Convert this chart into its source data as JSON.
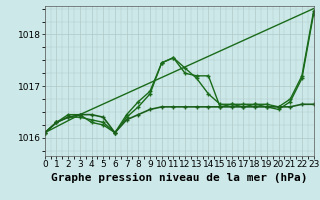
{
  "background_color": "#cce8e8",
  "grid_color": "#b0c8c8",
  "line_color": "#1a6b1a",
  "title": "Graphe pression niveau de la mer (hPa)",
  "xlim": [
    0,
    23
  ],
  "ylim": [
    1015.65,
    1018.55
  ],
  "yticks": [
    1016,
    1017,
    1018
  ],
  "xticks": [
    0,
    1,
    2,
    3,
    4,
    5,
    6,
    7,
    8,
    9,
    10,
    11,
    12,
    13,
    14,
    15,
    16,
    17,
    18,
    19,
    20,
    21,
    22,
    23
  ],
  "series": [
    {
      "x": [
        0,
        3,
        23
      ],
      "y": [
        1016.1,
        1016.45,
        1018.5
      ],
      "color": "#1a6b1a",
      "lw": 1.0,
      "marker": null
    },
    {
      "x": [
        0,
        1,
        2,
        3,
        4,
        5,
        6,
        7,
        8,
        9,
        10,
        11,
        12,
        13,
        14,
        15,
        16,
        17,
        18,
        19,
        20,
        21,
        22,
        23
      ],
      "y": [
        1016.1,
        1016.3,
        1016.45,
        1016.45,
        1016.3,
        1016.25,
        1016.1,
        1016.45,
        1016.7,
        1016.9,
        1017.45,
        1017.55,
        1017.25,
        1017.2,
        1017.2,
        1016.6,
        1016.65,
        1016.65,
        1016.65,
        1016.65,
        1016.6,
        1016.75,
        1017.2,
        1018.45
      ],
      "color": "#1a6b1a",
      "lw": 1.0,
      "marker": "+"
    },
    {
      "x": [
        0,
        1,
        2,
        3,
        4,
        5,
        6,
        7,
        8,
        9,
        10,
        11,
        12,
        13,
        14,
        15,
        16,
        17,
        18,
        19,
        20,
        21,
        22,
        23
      ],
      "y": [
        1016.1,
        1016.3,
        1016.4,
        1016.4,
        1016.35,
        1016.3,
        1016.1,
        1016.4,
        1016.6,
        1016.85,
        1017.45,
        1017.55,
        1017.35,
        1017.15,
        1016.85,
        1016.65,
        1016.65,
        1016.6,
        1016.65,
        1016.6,
        1016.55,
        1016.7,
        1017.15,
        1018.4
      ],
      "color": "#1a6b1a",
      "lw": 1.0,
      "marker": "+"
    },
    {
      "x": [
        0,
        1,
        2,
        3,
        4,
        5,
        6,
        7,
        8,
        9,
        10,
        11,
        12,
        13,
        14,
        15,
        16,
        17,
        18,
        19,
        20,
        21,
        22,
        23
      ],
      "y": [
        1016.1,
        1016.3,
        1016.4,
        1016.45,
        1016.45,
        1016.4,
        1016.1,
        1016.35,
        1016.45,
        1016.55,
        1016.6,
        1016.6,
        1016.6,
        1016.6,
        1016.6,
        1016.6,
        1016.6,
        1016.6,
        1016.6,
        1016.6,
        1016.6,
        1016.6,
        1016.65,
        1016.65
      ],
      "color": "#1a5f1a",
      "lw": 1.2,
      "marker": "+"
    }
  ],
  "title_fontsize": 8,
  "tick_fontsize": 6.5
}
